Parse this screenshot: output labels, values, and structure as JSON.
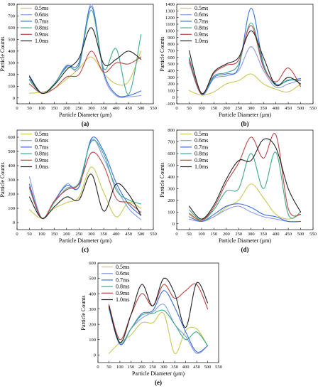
{
  "colors": {
    "0.5ms": "#c8c85a",
    "0.6ms": "#8a9be0",
    "0.7ms": "#3a6fd8",
    "0.8ms": "#3fa88a",
    "0.9ms": "#b84848",
    "1.0ms": "#222222"
  },
  "chart_data": [
    {
      "panel": "(a)",
      "type": "line",
      "xlabel": "Particle Diameter (μm)",
      "ylabel": "Particle Counts",
      "xlim": [
        0,
        550
      ],
      "ylim": [
        -50,
        800
      ],
      "xticks": [
        0,
        50,
        100,
        150,
        200,
        250,
        300,
        350,
        400,
        450,
        500,
        550
      ],
      "yticks": [
        0,
        100,
        200,
        300,
        400,
        500,
        600,
        700,
        800
      ],
      "legend_position": "top-left",
      "series": [
        {
          "name": "0.5ms",
          "x": [
            50,
            100,
            150,
            200,
            250,
            300,
            350,
            400,
            450,
            500
          ],
          "y": [
            40,
            50,
            80,
            160,
            250,
            350,
            210,
            120,
            140,
            400
          ]
        },
        {
          "name": "0.6ms",
          "x": [
            50,
            100,
            150,
            200,
            250,
            300,
            350,
            400,
            450,
            500
          ],
          "y": [
            150,
            40,
            110,
            280,
            260,
            800,
            200,
            20,
            10,
            20
          ]
        },
        {
          "name": "0.7ms",
          "x": [
            50,
            100,
            150,
            200,
            250,
            300,
            350,
            400,
            450,
            500
          ],
          "y": [
            190,
            40,
            120,
            270,
            300,
            780,
            220,
            30,
            20,
            60
          ]
        },
        {
          "name": "0.8ms",
          "x": [
            50,
            100,
            150,
            200,
            250,
            300,
            350,
            400,
            450,
            500
          ],
          "y": [
            160,
            40,
            120,
            260,
            280,
            750,
            250,
            420,
            30,
            540
          ]
        },
        {
          "name": "0.9ms",
          "x": [
            50,
            100,
            150,
            200,
            250,
            300,
            350,
            400,
            450,
            500
          ],
          "y": [
            120,
            40,
            80,
            180,
            200,
            400,
            220,
            300,
            290,
            350
          ]
        },
        {
          "name": "1.0ms",
          "x": [
            50,
            100,
            150,
            200,
            250,
            300,
            350,
            400,
            450,
            500
          ],
          "y": [
            180,
            40,
            110,
            240,
            340,
            600,
            290,
            330,
            400,
            330
          ]
        }
      ]
    },
    {
      "panel": "(b)",
      "type": "line",
      "xlabel": "Particle Diameter (μm)",
      "ylabel": "Particle Counts",
      "xlim": [
        0,
        550
      ],
      "ylim": [
        -100,
        1400
      ],
      "xticks": [
        0,
        50,
        100,
        150,
        200,
        250,
        300,
        350,
        400,
        450,
        500,
        550
      ],
      "yticks": [
        -100,
        0,
        100,
        200,
        300,
        400,
        500,
        600,
        700,
        800,
        900,
        1000,
        1100,
        1200,
        1300,
        1400
      ],
      "legend_position": "top-left",
      "series": [
        {
          "name": "0.5ms",
          "x": [
            50,
            100,
            150,
            200,
            250,
            300,
            350,
            400,
            450,
            500
          ],
          "y": [
            100,
            30,
            80,
            200,
            250,
            350,
            200,
            120,
            80,
            200
          ]
        },
        {
          "name": "0.6ms",
          "x": [
            50,
            100,
            150,
            200,
            250,
            300,
            350,
            400,
            450,
            500
          ],
          "y": [
            520,
            40,
            280,
            320,
            400,
            760,
            400,
            150,
            200,
            260
          ]
        },
        {
          "name": "0.7ms",
          "x": [
            50,
            100,
            150,
            200,
            250,
            300,
            350,
            400,
            450,
            500
          ],
          "y": [
            580,
            40,
            300,
            350,
            450,
            1340,
            500,
            200,
            250,
            280
          ]
        },
        {
          "name": "0.8ms",
          "x": [
            50,
            100,
            150,
            200,
            250,
            300,
            350,
            400,
            450,
            500
          ],
          "y": [
            600,
            50,
            320,
            370,
            500,
            1120,
            480,
            180,
            260,
            250
          ]
        },
        {
          "name": "0.9ms",
          "x": [
            50,
            100,
            150,
            200,
            250,
            300,
            350,
            400,
            450,
            500
          ],
          "y": [
            560,
            50,
            360,
            480,
            560,
            1080,
            450,
            230,
            440,
            160
          ]
        },
        {
          "name": "1.0ms",
          "x": [
            50,
            100,
            150,
            200,
            250,
            300,
            350,
            400,
            450,
            500
          ],
          "y": [
            700,
            60,
            380,
            500,
            600,
            1000,
            600,
            180,
            300,
            200
          ]
        }
      ]
    },
    {
      "panel": "(c)",
      "type": "line",
      "xlabel": "Particle Diameter (μm)",
      "ylabel": "Particle Counts",
      "xlim": [
        0,
        550
      ],
      "ylim": [
        -50,
        650
      ],
      "xticks": [
        0,
        50,
        100,
        150,
        200,
        250,
        300,
        350,
        400,
        450,
        500,
        550
      ],
      "yticks": [
        0,
        100,
        200,
        300,
        400,
        500,
        600
      ],
      "legend_position": "top-left",
      "series": [
        {
          "name": "0.5ms",
          "x": [
            50,
            100,
            150,
            200,
            250,
            300,
            350,
            400,
            450,
            500
          ],
          "y": [
            90,
            30,
            100,
            140,
            180,
            390,
            210,
            40,
            140,
            100
          ]
        },
        {
          "name": "0.6ms",
          "x": [
            50,
            100,
            150,
            200,
            250,
            300,
            350,
            400,
            450,
            500
          ],
          "y": [
            320,
            30,
            150,
            270,
            250,
            580,
            450,
            250,
            100,
            20
          ]
        },
        {
          "name": "0.7ms",
          "x": [
            50,
            100,
            150,
            200,
            250,
            300,
            350,
            400,
            450,
            500
          ],
          "y": [
            270,
            30,
            150,
            260,
            250,
            590,
            500,
            280,
            130,
            50
          ]
        },
        {
          "name": "0.8ms",
          "x": [
            50,
            100,
            150,
            200,
            250,
            300,
            350,
            400,
            450,
            500
          ],
          "y": [
            240,
            30,
            140,
            240,
            280,
            570,
            480,
            230,
            160,
            130
          ]
        },
        {
          "name": "0.9ms",
          "x": [
            50,
            100,
            150,
            200,
            250,
            300,
            350,
            400,
            450,
            500
          ],
          "y": [
            250,
            30,
            150,
            230,
            270,
            490,
            400,
            170,
            140,
            70
          ]
        },
        {
          "name": "1.0ms",
          "x": [
            50,
            100,
            150,
            200,
            250,
            300,
            350,
            400,
            450,
            500
          ],
          "y": [
            180,
            30,
            110,
            180,
            160,
            340,
            80,
            270,
            200,
            50
          ]
        }
      ]
    },
    {
      "panel": "(d)",
      "type": "line",
      "xlabel": "Particle Diameter (μm)",
      "ylabel": "Particle Counts",
      "xlim": [
        0,
        550
      ],
      "ylim": [
        -50,
        800
      ],
      "xticks": [
        0,
        50,
        100,
        150,
        200,
        250,
        300,
        350,
        400,
        450,
        500,
        550
      ],
      "yticks": [
        0,
        100,
        200,
        300,
        400,
        500,
        600,
        700,
        800
      ],
      "legend_position": "top-left",
      "series": [
        {
          "name": "0.5ms",
          "x": [
            50,
            100,
            150,
            200,
            250,
            300,
            350,
            400,
            450,
            500
          ],
          "y": [
            80,
            20,
            60,
            140,
            200,
            340,
            220,
            80,
            40,
            80
          ]
        },
        {
          "name": "0.6ms",
          "x": [
            50,
            100,
            150,
            200,
            250,
            300,
            350,
            400,
            450,
            500
          ],
          "y": [
            40,
            20,
            60,
            120,
            150,
            100,
            60,
            40,
            20,
            20
          ]
        },
        {
          "name": "0.7ms",
          "x": [
            50,
            100,
            150,
            200,
            250,
            300,
            350,
            400,
            450,
            500
          ],
          "y": [
            60,
            20,
            80,
            150,
            170,
            140,
            80,
            60,
            20,
            20
          ]
        },
        {
          "name": "0.8ms",
          "x": [
            50,
            100,
            150,
            200,
            250,
            300,
            350,
            400,
            450,
            500
          ],
          "y": [
            120,
            30,
            120,
            280,
            300,
            600,
            300,
            610,
            80,
            100
          ]
        },
        {
          "name": "0.9ms",
          "x": [
            50,
            100,
            150,
            200,
            250,
            300,
            350,
            400,
            450,
            500
          ],
          "y": [
            90,
            30,
            140,
            350,
            520,
            740,
            560,
            760,
            130,
            80
          ]
        },
        {
          "name": "1.0ms",
          "x": [
            50,
            100,
            150,
            200,
            250,
            300,
            350,
            400,
            450,
            500
          ],
          "y": [
            150,
            40,
            160,
            380,
            540,
            540,
            720,
            650,
            300,
            100
          ]
        }
      ]
    },
    {
      "panel": "(e)",
      "type": "line",
      "xlabel": "Particle Diameter (μm)",
      "ylabel": "Particle Counts",
      "xlim": [
        0,
        550
      ],
      "ylim": [
        -50,
        600
      ],
      "xticks": [
        0,
        50,
        100,
        150,
        200,
        250,
        300,
        350,
        400,
        450,
        500,
        550
      ],
      "yticks": [
        0,
        100,
        200,
        300,
        400,
        500,
        600
      ],
      "legend_position": "top-left",
      "series": [
        {
          "name": "0.5ms",
          "x": [
            50,
            100,
            150,
            200,
            250,
            300,
            350,
            400,
            450,
            500
          ],
          "y": [
            10,
            80,
            130,
            210,
            210,
            270,
            10,
            160,
            170,
            60
          ]
        },
        {
          "name": "0.6ms",
          "x": [
            50,
            100,
            150,
            200,
            250,
            300,
            350,
            400,
            450,
            500
          ],
          "y": [
            300,
            70,
            170,
            240,
            280,
            330,
            200,
            120,
            10,
            60
          ]
        },
        {
          "name": "0.7ms",
          "x": [
            50,
            100,
            150,
            200,
            250,
            300,
            350,
            400,
            450,
            500
          ],
          "y": [
            310,
            70,
            170,
            270,
            290,
            420,
            310,
            150,
            20,
            60
          ]
        },
        {
          "name": "0.8ms",
          "x": [
            50,
            100,
            150,
            200,
            250,
            300,
            350,
            400,
            450,
            500
          ],
          "y": [
            320,
            80,
            170,
            260,
            270,
            290,
            200,
            100,
            150,
            60
          ]
        },
        {
          "name": "0.9ms",
          "x": [
            50,
            100,
            150,
            200,
            250,
            300,
            350,
            400,
            450,
            500
          ],
          "y": [
            330,
            100,
            260,
            400,
            320,
            460,
            370,
            420,
            460,
            300
          ]
        },
        {
          "name": "1.0ms",
          "x": [
            50,
            100,
            150,
            200,
            250,
            300,
            350,
            400,
            450,
            500
          ],
          "y": [
            320,
            80,
            260,
            460,
            320,
            500,
            400,
            180,
            470,
            340
          ]
        }
      ]
    }
  ]
}
